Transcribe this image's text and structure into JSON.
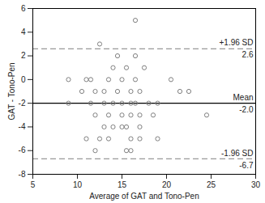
{
  "chart_data": {
    "type": "scatter",
    "x_label": "Average of GAT and Tono-Pen",
    "y_label": "GAT - Tono-Pen",
    "x": [
      16.5,
      12.5,
      14.5,
      16.5,
      14,
      15.5,
      17.5,
      9,
      11,
      11.5,
      13.5,
      15,
      16.5,
      20.5,
      10.5,
      12,
      13,
      14.5,
      16,
      17,
      21.5,
      22.5,
      9,
      11.5,
      13,
      14,
      15,
      16,
      16.5,
      18,
      19,
      12,
      13.5,
      15,
      16,
      17,
      18.5,
      24.5,
      13,
      14,
      15,
      15.5,
      17,
      11,
      12.5,
      13.5,
      16,
      17,
      19,
      12,
      15.5,
      16
    ],
    "values": [
      5,
      3,
      2,
      2,
      1,
      1,
      1,
      0,
      0,
      0,
      0,
      0,
      0,
      0,
      -1,
      -1,
      -1,
      -1,
      -1,
      -1,
      -1,
      -1,
      -2,
      -2,
      -2,
      -2,
      -2,
      -2,
      -2,
      -2,
      -2,
      -3,
      -3,
      -3,
      -3,
      -3,
      -3,
      -3,
      -4,
      -4,
      -4,
      -4,
      -4,
      -5,
      -5,
      -5,
      -5,
      -5,
      -5,
      -6,
      -6,
      -6
    ],
    "color": "#808080",
    "marker": "open_circle",
    "xlim": [
      5,
      30
    ],
    "xticks": [
      5,
      10,
      15,
      20,
      25,
      30
    ],
    "ylim": [
      -8,
      6
    ],
    "yticks": [
      -8,
      -6,
      -4,
      -2,
      0,
      2,
      4,
      6
    ],
    "grid": false,
    "reference_lines": [
      {
        "value": 2.6,
        "label": "+1.96 SD",
        "value_label": "2.6",
        "line_style": "dashed",
        "color": "#999999"
      },
      {
        "value": -2.0,
        "label": "Mean",
        "value_label": "-2.0",
        "line_style": "solid",
        "color": "#000000"
      },
      {
        "value": -6.7,
        "label": "-1.96 SD",
        "value_label": "-6.7",
        "line_style": "dashed",
        "color": "#999999"
      }
    ]
  }
}
